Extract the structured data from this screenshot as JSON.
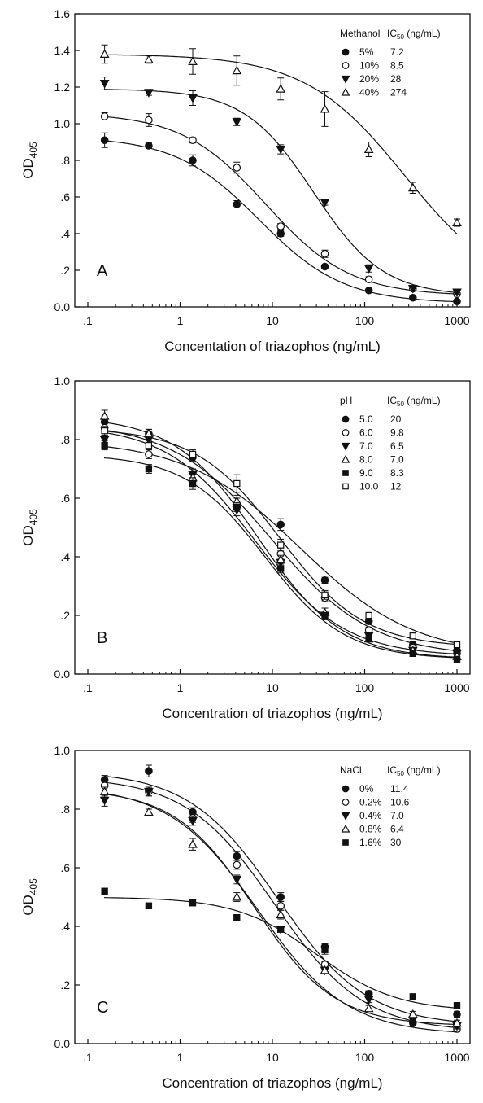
{
  "chart_data": [
    {
      "type": "scatter",
      "panel_label": "A",
      "xlabel": "Concentation of triazophos (ng/mL)",
      "ylabel": "OD",
      "ylabel_sub": "405",
      "x_scale": "log",
      "xlim": [
        0.1,
        1000
      ],
      "ylim": [
        0,
        1.6
      ],
      "x_ticks": [
        0.1,
        1,
        10,
        100,
        1000
      ],
      "x_tick_labels": [
        ".1",
        "1",
        "10",
        "100",
        "1000"
      ],
      "y_ticks": [
        0,
        0.2,
        0.4,
        0.6,
        0.8,
        1.0,
        1.2,
        1.4,
        1.6
      ],
      "y_tick_labels": [
        "0.0",
        ".2",
        ".4",
        ".6",
        ".8",
        "1.0",
        "1.2",
        "1.4",
        "1.6"
      ],
      "grid": false,
      "legend_position": "top-right",
      "legend_header": {
        "factor": "Methanol",
        "ic50_main": "IC",
        "ic50_sub": "50",
        "ic50_unit": " (ng/mL)"
      },
      "x": [
        0.152,
        0.457,
        1.37,
        4.12,
        12.3,
        37.0,
        111,
        333,
        1000
      ],
      "series": [
        {
          "name": "5%",
          "ic50": "7.2",
          "marker": "filled-circle",
          "y": [
            0.91,
            0.88,
            0.8,
            0.56,
            0.4,
            0.22,
            0.09,
            0.05,
            0.03
          ],
          "err": [
            0.04,
            0.015,
            0.03,
            0.02,
            0.015,
            0.01,
            0.01,
            0.01,
            0.01
          ],
          "fit": {
            "top": 0.93,
            "bottom": 0.02,
            "ic50": 7.2,
            "slope": 0.95
          }
        },
        {
          "name": "10%",
          "ic50": "8.5",
          "marker": "open-circle",
          "y": [
            1.04,
            1.02,
            0.91,
            0.76,
            0.44,
            0.29,
            0.15,
            0.1,
            0.07
          ],
          "err": [
            0.02,
            0.035,
            0.015,
            0.03,
            0.015,
            0.02,
            0.015,
            0.01,
            0.01
          ],
          "fit": {
            "top": 1.06,
            "bottom": 0.06,
            "ic50": 8.5,
            "slope": 0.95
          }
        },
        {
          "name": "20%",
          "ic50": "28",
          "marker": "filled-triangle-down",
          "y": [
            1.22,
            1.17,
            1.14,
            1.01,
            0.86,
            0.57,
            0.21,
            0.1,
            0.08
          ],
          "err": [
            0.035,
            0.015,
            0.04,
            0.02,
            0.025,
            0.015,
            0.02,
            0.01,
            0.01
          ],
          "fit": {
            "top": 1.19,
            "bottom": 0.06,
            "ic50": 28,
            "slope": 1.15
          }
        },
        {
          "name": "40%",
          "ic50": "274",
          "marker": "open-triangle-up",
          "y": [
            1.38,
            1.35,
            1.34,
            1.29,
            1.19,
            1.08,
            0.86,
            0.65,
            0.46
          ],
          "err": [
            0.05,
            0.02,
            0.07,
            0.08,
            0.06,
            0.095,
            0.04,
            0.03,
            0.02
          ],
          "fit": {
            "top": 1.38,
            "bottom": 0.05,
            "ic50": 274,
            "slope": 0.8
          }
        }
      ]
    },
    {
      "type": "scatter",
      "panel_label": "B",
      "xlabel": "Concentration of triazophos (ng/mL)",
      "ylabel": "OD",
      "ylabel_sub": "405",
      "x_scale": "log",
      "xlim": [
        0.1,
        1000
      ],
      "ylim": [
        0,
        1.0
      ],
      "x_ticks": [
        0.1,
        1,
        10,
        100,
        1000
      ],
      "x_tick_labels": [
        ".1",
        "1",
        "10",
        "100",
        "1000"
      ],
      "y_ticks": [
        0,
        0.2,
        0.4,
        0.6,
        0.8,
        1.0
      ],
      "y_tick_labels": [
        "0.0",
        ".2",
        ".4",
        ".6",
        ".8",
        "1.0"
      ],
      "grid": false,
      "legend_position": "top-right",
      "legend_header": {
        "factor": "pH",
        "ic50_main": "IC",
        "ic50_sub": "50",
        "ic50_unit": " (ng/mL)"
      },
      "x": [
        0.152,
        0.457,
        1.37,
        4.12,
        12.3,
        37.0,
        111,
        333,
        1000
      ],
      "series": [
        {
          "name": "5.0",
          "ic50": "20",
          "marker": "filled-circle",
          "y": [
            0.86,
            0.82,
            0.74,
            0.58,
            0.51,
            0.32,
            0.18,
            0.1,
            0.08
          ],
          "err": [
            0.02,
            0.015,
            0.015,
            0.02,
            0.02,
            0.01,
            0.01,
            0.01,
            0.01
          ],
          "fit": {
            "top": 0.8,
            "bottom": 0.06,
            "ic50": 20,
            "slope": 0.7
          }
        },
        {
          "name": "6.0",
          "ic50": "9.8",
          "marker": "open-circle",
          "y": [
            0.84,
            0.75,
            0.66,
            0.57,
            0.41,
            0.26,
            0.15,
            0.09,
            0.07
          ],
          "err": [
            0.015,
            0.015,
            0.02,
            0.015,
            0.02,
            0.01,
            0.01,
            0.01,
            0.01
          ],
          "fit": {
            "top": 0.86,
            "bottom": 0.06,
            "ic50": 9.8,
            "slope": 0.8
          }
        },
        {
          "name": "7.0",
          "ic50": "6.5",
          "marker": "filled-triangle-down",
          "y": [
            0.8,
            0.8,
            0.68,
            0.56,
            0.38,
            0.2,
            0.13,
            0.08,
            0.07
          ],
          "err": [
            0.015,
            0.015,
            0.02,
            0.02,
            0.015,
            0.015,
            0.01,
            0.01,
            0.01
          ],
          "fit": {
            "top": 0.85,
            "bottom": 0.06,
            "ic50": 6.5,
            "slope": 0.9
          }
        },
        {
          "name": "8.0",
          "ic50": "7.0",
          "marker": "open-triangle-up",
          "y": [
            0.88,
            0.82,
            0.67,
            0.59,
            0.39,
            0.21,
            0.12,
            0.08,
            0.06
          ],
          "err": [
            0.02,
            0.015,
            0.02,
            0.02,
            0.015,
            0.015,
            0.01,
            0.01,
            0.01
          ],
          "fit": {
            "top": 0.88,
            "bottom": 0.05,
            "ic50": 7.0,
            "slope": 0.95
          }
        },
        {
          "name": "9.0",
          "ic50": "8.3",
          "marker": "filled-square",
          "y": [
            0.78,
            0.7,
            0.65,
            0.57,
            0.36,
            0.2,
            0.12,
            0.07,
            0.05
          ],
          "err": [
            0.015,
            0.015,
            0.02,
            0.015,
            0.015,
            0.01,
            0.01,
            0.01,
            0.01
          ],
          "fit": {
            "top": 0.75,
            "bottom": 0.05,
            "ic50": 8.3,
            "slope": 1.0
          }
        },
        {
          "name": "10.0",
          "ic50": "12",
          "marker": "open-square",
          "y": [
            0.83,
            0.78,
            0.75,
            0.65,
            0.44,
            0.27,
            0.2,
            0.13,
            0.1
          ],
          "err": [
            0.015,
            0.015,
            0.015,
            0.03,
            0.02,
            0.015,
            0.01,
            0.01,
            0.01
          ],
          "fit": {
            "top": 0.84,
            "bottom": 0.09,
            "ic50": 12,
            "slope": 0.95
          }
        }
      ]
    },
    {
      "type": "scatter",
      "panel_label": "C",
      "xlabel": "Concentration of triazophos (ng/mL)",
      "ylabel": "OD",
      "ylabel_sub": "405",
      "x_scale": "log",
      "xlim": [
        0.1,
        1000
      ],
      "ylim": [
        0,
        1.0
      ],
      "x_ticks": [
        0.1,
        1,
        10,
        100,
        1000
      ],
      "x_tick_labels": [
        ".1",
        "1",
        "10",
        "100",
        "1000"
      ],
      "y_ticks": [
        0,
        0.2,
        0.4,
        0.6,
        0.8,
        1.0
      ],
      "y_tick_labels": [
        "0.0",
        ".2",
        ".4",
        ".6",
        ".8",
        "1.0"
      ],
      "grid": false,
      "legend_position": "top-right",
      "legend_header": {
        "factor": "NaCl",
        "ic50_main": "IC",
        "ic50_sub": "50",
        "ic50_unit": " (ng/mL)"
      },
      "x": [
        0.152,
        0.457,
        1.37,
        4.12,
        12.3,
        37.0,
        111,
        333,
        1000
      ],
      "series": [
        {
          "name": "0%",
          "ic50": "11.4",
          "marker": "filled-circle",
          "y": [
            0.9,
            0.93,
            0.79,
            0.64,
            0.5,
            0.33,
            0.17,
            0.07,
            0.1
          ],
          "err": [
            0.015,
            0.02,
            0.015,
            0.015,
            0.015,
            0.01,
            0.01,
            0.01,
            0.01
          ],
          "fit": {
            "top": 0.93,
            "bottom": 0.06,
            "ic50": 11.4,
            "slope": 0.9
          }
        },
        {
          "name": "0.2%",
          "ic50": "10.6",
          "marker": "open-circle",
          "y": [
            0.88,
            0.86,
            0.77,
            0.61,
            0.47,
            0.27,
            0.17,
            0.09,
            0.05
          ],
          "err": [
            0.015,
            0.015,
            0.015,
            0.015,
            0.015,
            0.01,
            0.01,
            0.01,
            0.01
          ],
          "fit": {
            "top": 0.91,
            "bottom": 0.04,
            "ic50": 10.6,
            "slope": 0.9
          }
        },
        {
          "name": "0.4%",
          "ic50": "7.0",
          "marker": "filled-triangle-down",
          "y": [
            0.83,
            0.86,
            0.76,
            0.56,
            0.39,
            0.25,
            0.15,
            0.08,
            0.06
          ],
          "err": [
            0.02,
            0.015,
            0.015,
            0.015,
            0.01,
            0.01,
            0.01,
            0.01,
            0.01
          ],
          "fit": {
            "top": 0.88,
            "bottom": 0.03,
            "ic50": 7.0,
            "slope": 0.9
          }
        },
        {
          "name": "0.8%",
          "ic50": "6.4",
          "marker": "open-triangle-up",
          "y": [
            0.86,
            0.79,
            0.68,
            0.5,
            0.44,
            0.25,
            0.12,
            0.1,
            0.07
          ],
          "err": [
            0.015,
            0.01,
            0.02,
            0.015,
            0.015,
            0.01,
            0.01,
            0.01,
            0.01
          ],
          "fit": {
            "top": 0.87,
            "bottom": 0.06,
            "ic50": 6.4,
            "slope": 1.0
          }
        },
        {
          "name": "1.6%",
          "ic50": "30",
          "marker": "filled-square",
          "y": [
            0.52,
            0.47,
            0.48,
            0.43,
            0.39,
            0.32,
            0.17,
            0.16,
            0.13
          ],
          "err": [
            0.01,
            0.01,
            0.01,
            0.01,
            0.01,
            0.015,
            0.01,
            0.01,
            0.01
          ],
          "fit": {
            "top": 0.5,
            "bottom": 0.11,
            "ic50": 30,
            "slope": 1.0
          }
        }
      ]
    }
  ]
}
